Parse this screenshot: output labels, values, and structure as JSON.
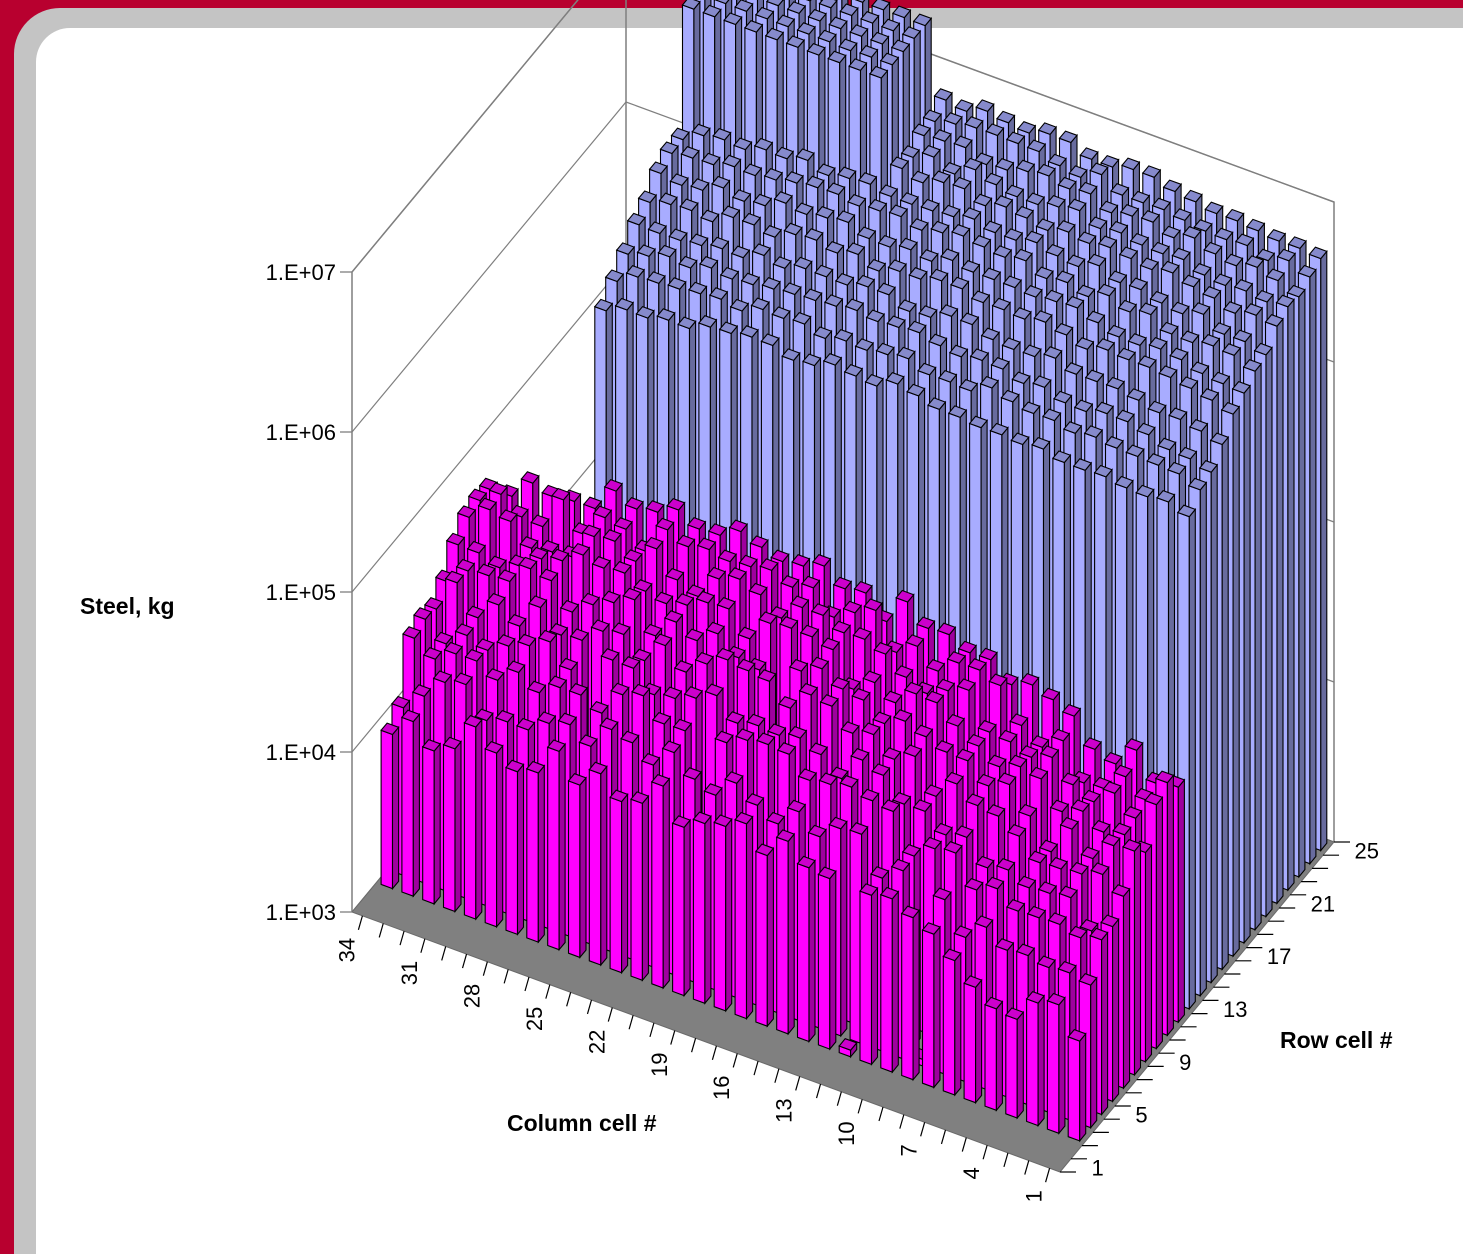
{
  "chart_data": {
    "type": "bar3d",
    "zlabel": "Steel, kg",
    "xlabel": "Column cell #",
    "ylabel": "Row cell #",
    "z_scale": "log",
    "zlim": [
      1000,
      10000000
    ],
    "z_ticks": [
      "1.E+03",
      "1.E+04",
      "1.E+05",
      "1.E+06",
      "1.E+07"
    ],
    "column_ticks": [
      "1",
      "4",
      "7",
      "10",
      "13",
      "16",
      "19",
      "22",
      "25",
      "28",
      "31",
      "34"
    ],
    "row_ticks": [
      "1",
      "5",
      "9",
      "13",
      "17",
      "21",
      "25"
    ],
    "column_range": [
      1,
      34
    ],
    "row_range": [
      1,
      25
    ],
    "grid": true,
    "series": [
      {
        "color": "#a8acff",
        "region": {
          "columns": [
            1,
            29
          ],
          "rows": [
            13,
            25
          ],
          "notch": {
            "columns": [
              1,
              21
            ],
            "rows": [
              13,
              15
            ]
          },
          "tower": {
            "columns": [
              20,
              29
            ],
            "rows": [
              21,
              25
            ]
          }
        },
        "row_profile": {
          "13": 1600000,
          "14": 2000000,
          "15": 2300000,
          "16": 2700000,
          "17": 3300000,
          "18": 3800000,
          "19": 4300000,
          "20": 4800000,
          "21": 5300000,
          "22": 5700000,
          "23": 6000000,
          "24": 6400000,
          "25": 6800000
        },
        "column_peak": 15,
        "tower_level": 19000000
      },
      {
        "color": "#ff00ff",
        "region": {
          "columns": [
            1,
            34
          ],
          "rows": [
            3,
            12
          ]
        },
        "row_profile": {
          "3": 15000,
          "4": 22000,
          "5": 30000,
          "6": 38000,
          "7": 48000,
          "8": 58000,
          "9": 68000,
          "10": 78000,
          "11": 88000,
          "12": 95000
        },
        "column_peak": 22,
        "gaps": [
          [
            9,
            4
          ],
          [
            18,
            8
          ],
          [
            26,
            6
          ],
          [
            12,
            3
          ],
          [
            20,
            5
          ]
        ]
      }
    ]
  }
}
